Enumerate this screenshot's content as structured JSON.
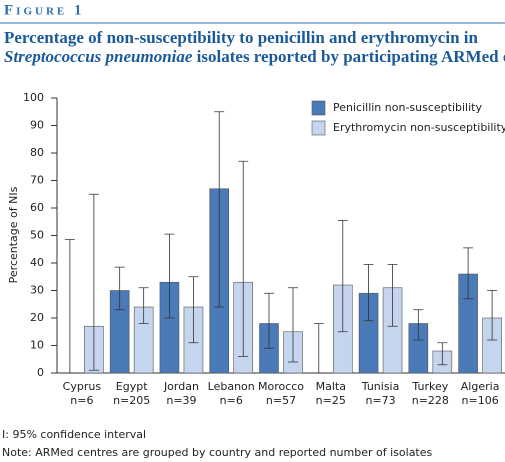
{
  "header": "Figure 1",
  "chart_data": {
    "type": "bar",
    "title": "Percentage of non-susceptibility to penicillin and erythromycin in",
    "title_italic": "Streptococcus pneumoniae",
    "title_rest": "isolates reported by participating ARMed centres",
    "y_label": "Percentage of NIs",
    "categories": [
      "Cyprus",
      "Egypt",
      "Jordan",
      "Lebanon",
      "Morocco",
      "Malta",
      "Tunisia",
      "Turkey",
      "Algeria"
    ],
    "category_counts": [
      "n=6",
      "n=205",
      "n=39",
      "n=6",
      "n=57",
      "n=25",
      "n=73",
      "n=228",
      "n=106"
    ],
    "series": [
      {
        "name": "Penicillin non-susceptibility",
        "color": "#4a7ab8",
        "values": [
          0,
          30,
          33,
          67,
          18,
          0,
          29,
          18,
          36
        ],
        "ci_low": [
          0,
          23,
          20,
          24,
          9,
          0,
          19,
          12,
          27
        ],
        "ci_high": [
          48.5,
          38.5,
          50.5,
          95,
          29,
          18,
          39.5,
          23,
          45.5
        ]
      },
      {
        "name": "Erythromycin non-susceptibility",
        "color": "#c5d5ee",
        "values": [
          17,
          24,
          24,
          33,
          15,
          32,
          31,
          8,
          20
        ],
        "ci_low": [
          1,
          18,
          11,
          6,
          4,
          15,
          17,
          3,
          12
        ],
        "ci_high": [
          65,
          31,
          35,
          77,
          31,
          55.5,
          39.5,
          11,
          30
        ]
      }
    ],
    "ylim": [
      0,
      100
    ],
    "yticks": [
      0,
      10,
      20,
      30,
      40,
      50,
      60,
      70,
      80,
      90,
      100
    ],
    "legend": "top-right",
    "notes": [
      "I: 95% confidence interval",
      "Note: ARMed centres are grouped by country and reported number of isolates"
    ]
  }
}
